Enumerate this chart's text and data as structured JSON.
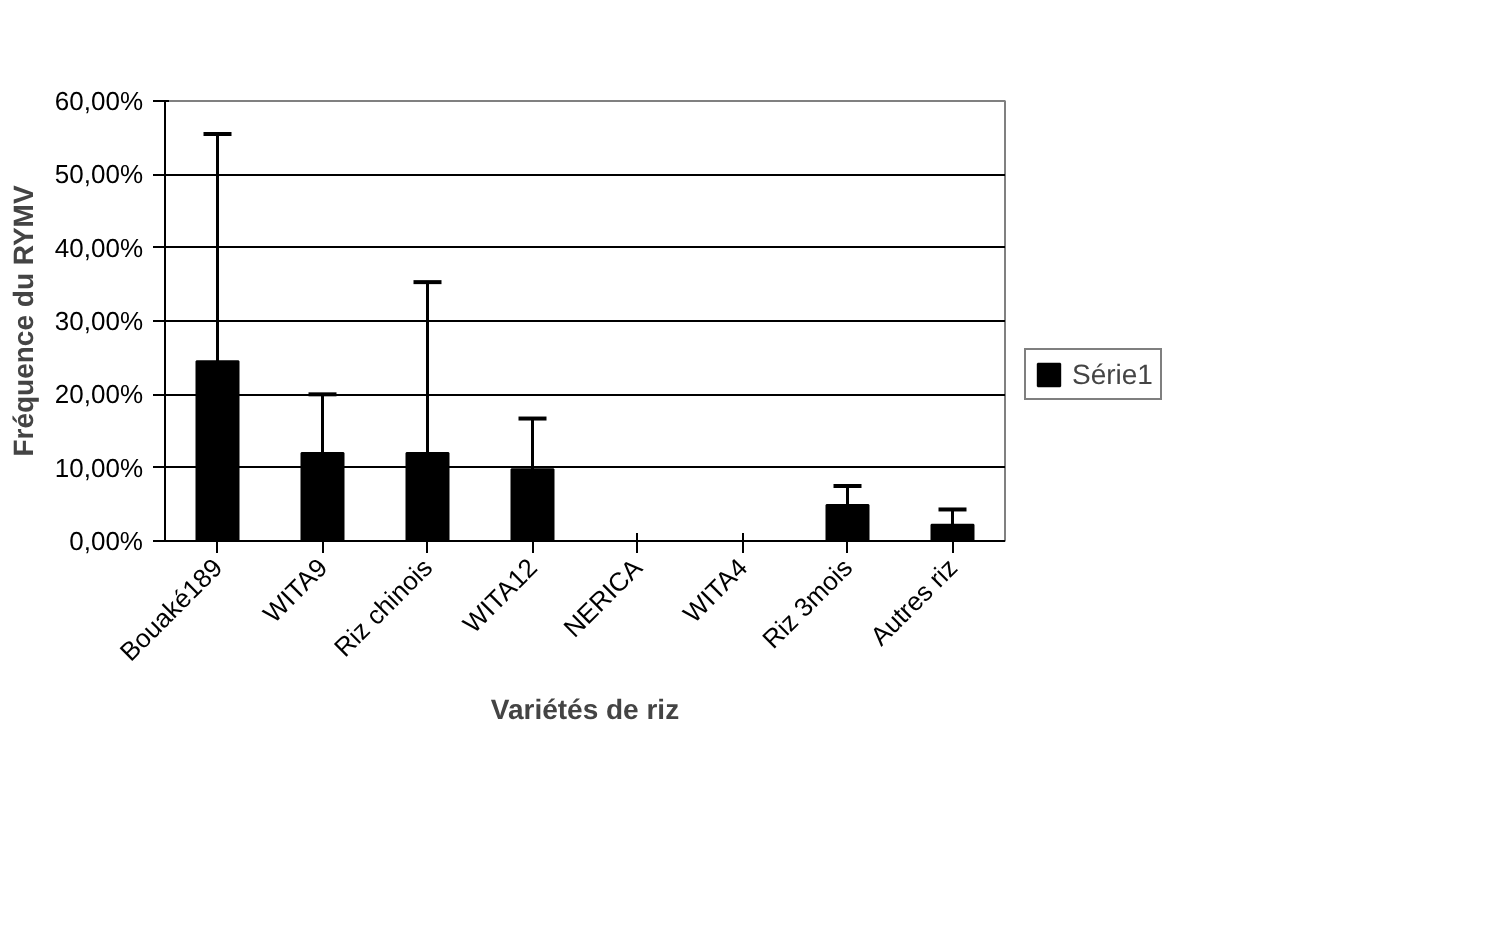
{
  "chart_data": {
    "type": "bar",
    "xlabel": "Variétés de riz",
    "ylabel": "Fréquence du RYMV",
    "categories": [
      "Bouaké189",
      "WITA9",
      "Riz chinois",
      "WITA12",
      "NERICA",
      "WITA4",
      "Riz 3mois",
      "Autres riz"
    ],
    "series": [
      {
        "name": "Série1",
        "color": "#000000",
        "values": [
          24.5,
          12.0,
          12.0,
          9.8,
          0,
          0,
          4.9,
          2.2
        ],
        "errors": [
          [
            24.5,
            55.5
          ],
          [
            12.0,
            20.0
          ],
          [
            12.0,
            35.3
          ],
          [
            9.8,
            16.7
          ],
          null,
          null,
          [
            4.9,
            7.5
          ],
          [
            2.2,
            4.3
          ]
        ]
      }
    ],
    "ylim": [
      0,
      60
    ],
    "yticks": [
      {
        "value": 0,
        "label": "0,00%"
      },
      {
        "value": 10,
        "label": "10,00%"
      },
      {
        "value": 20,
        "label": "20,00%"
      },
      {
        "value": 30,
        "label": "30,00%"
      },
      {
        "value": 40,
        "label": "40,00%"
      },
      {
        "value": 50,
        "label": "50,00%"
      },
      {
        "value": 60,
        "label": "60,00%"
      }
    ],
    "grid": "y",
    "legend": "right"
  }
}
